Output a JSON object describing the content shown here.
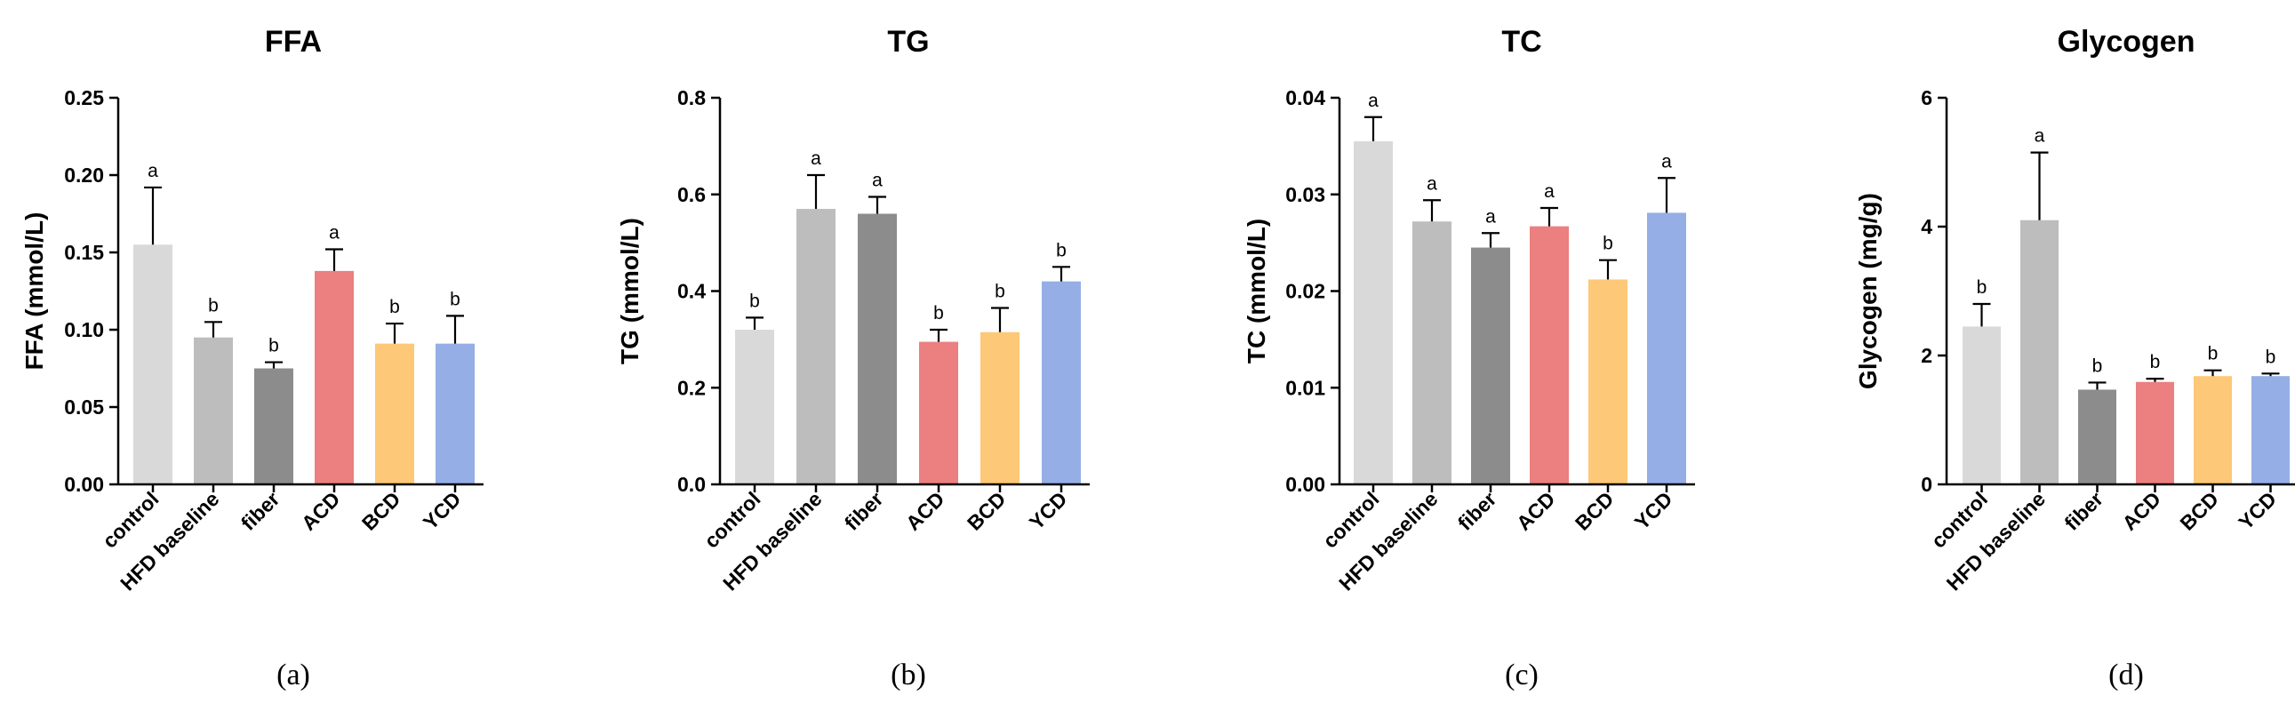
{
  "chart_data": [
    {
      "type": "bar",
      "panel_label": "(a)",
      "title": "FFA",
      "xlabel": "",
      "ylabel": "FFA (mmol/L)",
      "ylim": [
        0,
        0.25
      ],
      "yticks": [
        0.0,
        0.05,
        0.1,
        0.15,
        0.2,
        0.25
      ],
      "ytick_labels": [
        "0.00",
        "0.05",
        "0.10",
        "0.15",
        "0.20",
        "0.25"
      ],
      "categories": [
        "control",
        "HFD baseline",
        "fiber",
        "ACD",
        "BCD",
        "YCD"
      ],
      "values": [
        0.155,
        0.095,
        0.075,
        0.138,
        0.091,
        0.091
      ],
      "errors": [
        0.037,
        0.01,
        0.004,
        0.014,
        0.013,
        0.018
      ],
      "significance": [
        "a",
        "b",
        "b",
        "a",
        "b",
        "b"
      ],
      "colors": [
        "#d9d9d9",
        "#bdbdbd",
        "#8c8c8c",
        "#ec7f7f",
        "#fdc877",
        "#95aee6"
      ]
    },
    {
      "type": "bar",
      "panel_label": "(b)",
      "title": "TG",
      "xlabel": "",
      "ylabel": "TG (mmol/L)",
      "ylim": [
        0,
        0.8
      ],
      "yticks": [
        0.0,
        0.2,
        0.4,
        0.6,
        0.8
      ],
      "ytick_labels": [
        "0.0",
        "0.2",
        "0.4",
        "0.6",
        "0.8"
      ],
      "categories": [
        "control",
        "HFD baseline",
        "fiber",
        "ACD",
        "BCD",
        "YCD"
      ],
      "values": [
        0.32,
        0.57,
        0.56,
        0.295,
        0.315,
        0.42
      ],
      "errors": [
        0.025,
        0.07,
        0.035,
        0.025,
        0.05,
        0.03
      ],
      "significance": [
        "b",
        "a",
        "a",
        "b",
        "b",
        "b"
      ],
      "colors": [
        "#d9d9d9",
        "#bdbdbd",
        "#8c8c8c",
        "#ec7f7f",
        "#fdc877",
        "#95aee6"
      ]
    },
    {
      "type": "bar",
      "panel_label": "(c)",
      "title": "TC",
      "xlabel": "",
      "ylabel": "TC (mmol/L)",
      "ylim": [
        0,
        0.04
      ],
      "yticks": [
        0.0,
        0.01,
        0.02,
        0.03,
        0.04
      ],
      "ytick_labels": [
        "0.00",
        "0.01",
        "0.02",
        "0.03",
        "0.04"
      ],
      "categories": [
        "control",
        "HFD baseline",
        "fiber",
        "ACD",
        "BCD",
        "YCD"
      ],
      "values": [
        0.0355,
        0.0272,
        0.0245,
        0.0267,
        0.0212,
        0.0281
      ],
      "errors": [
        0.0025,
        0.0022,
        0.0015,
        0.0019,
        0.002,
        0.0036
      ],
      "significance": [
        "a",
        "a",
        "a",
        "a",
        "b",
        "a"
      ],
      "colors": [
        "#d9d9d9",
        "#bdbdbd",
        "#8c8c8c",
        "#ec7f7f",
        "#fdc877",
        "#95aee6"
      ]
    },
    {
      "type": "bar",
      "panel_label": "(d)",
      "title": "Glycogen",
      "xlabel": "",
      "ylabel": "Glycogen (mg/g)",
      "ylim": [
        0,
        6
      ],
      "yticks": [
        0,
        2,
        4,
        6
      ],
      "ytick_labels": [
        "0",
        "2",
        "4",
        "6"
      ],
      "categories": [
        "control",
        "HFD baseline",
        "fiber",
        "ACD",
        "BCD",
        "YCD"
      ],
      "values": [
        2.45,
        4.1,
        1.47,
        1.59,
        1.68,
        1.68
      ],
      "errors": [
        0.35,
        1.05,
        0.11,
        0.05,
        0.09,
        0.04
      ],
      "significance": [
        "b",
        "a",
        "b",
        "b",
        "b",
        "b"
      ],
      "colors": [
        "#d9d9d9",
        "#bdbdbd",
        "#8c8c8c",
        "#ec7f7f",
        "#fdc877",
        "#95aee6"
      ]
    }
  ]
}
